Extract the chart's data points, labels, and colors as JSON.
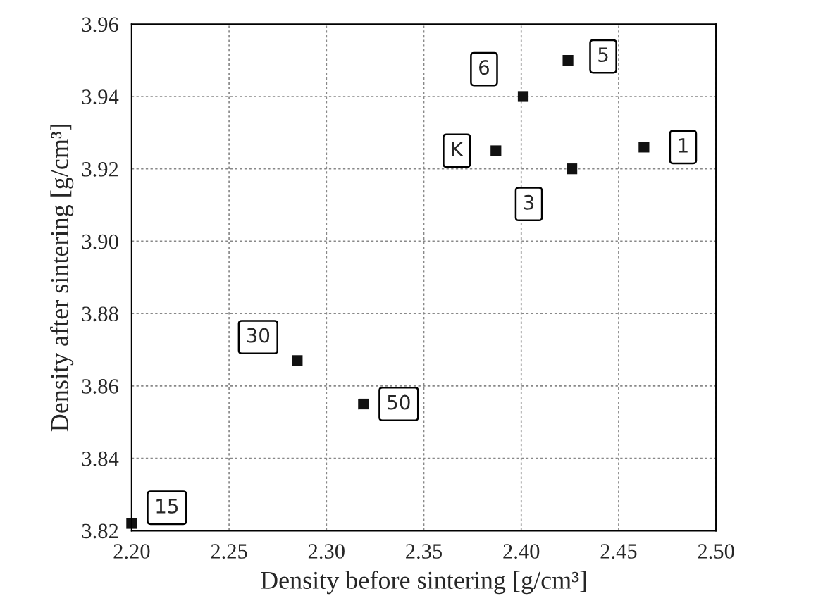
{
  "chart_data": {
    "type": "scatter",
    "xlabel": "Density before sintering [g/cm³]",
    "ylabel": "Density after sintering [g/cm³]",
    "x": [
      2.2,
      2.285,
      2.319,
      2.387,
      2.401,
      2.424,
      2.426,
      2.463
    ],
    "values": [
      3.822,
      3.867,
      3.855,
      3.925,
      3.94,
      3.95,
      3.92,
      3.926
    ],
    "color": "#111111",
    "marker": "square",
    "annotations": [
      {
        "text": "15",
        "x": 2.2,
        "y": 3.822
      },
      {
        "text": "30",
        "x": 2.285,
        "y": 3.867
      },
      {
        "text": "50",
        "x": 2.319,
        "y": 3.855
      },
      {
        "text": "K",
        "x": 2.387,
        "y": 3.925
      },
      {
        "text": "6",
        "x": 2.401,
        "y": 3.94
      },
      {
        "text": "5",
        "x": 2.424,
        "y": 3.95
      },
      {
        "text": "3",
        "x": 2.426,
        "y": 3.92
      },
      {
        "text": "1",
        "x": 2.463,
        "y": 3.926
      }
    ],
    "xlim": [
      2.2,
      2.5
    ],
    "xticks": [
      {
        "value": 2.2,
        "label": "2.20"
      },
      2.25,
      {
        "value": 2.3,
        "label": "2.30"
      },
      2.35,
      {
        "value": 2.4,
        "label": "2.40"
      },
      2.45,
      {
        "value": 2.5,
        "label": "2.50"
      }
    ],
    "ylim": [
      3.82,
      3.96
    ],
    "yticks": [
      {
        "value": 3.82,
        "label": "3.82"
      },
      3.84,
      3.86,
      3.88,
      {
        "value": 3.9,
        "label": "3.90"
      },
      3.92,
      3.94,
      3.96
    ],
    "grid": true
  }
}
